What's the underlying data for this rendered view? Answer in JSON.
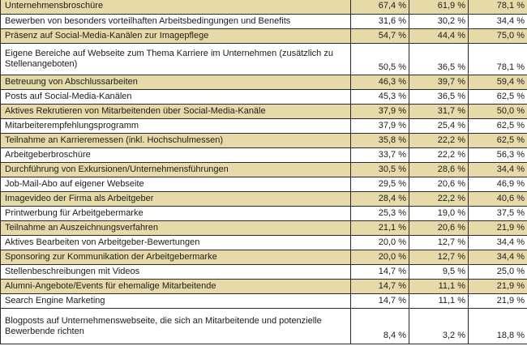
{
  "rows": [
    {
      "label": "Unternehmensbroschüre",
      "v1": "67,4 %",
      "v2": "61,9 %",
      "v3": "78,1 %",
      "shaded": true
    },
    {
      "label": "Bewerben von besonders vorteilhaften Arbeitsbedingungen und Benefits",
      "v1": "31,6 %",
      "v2": "30,2 %",
      "v3": "34,4 %",
      "shaded": false
    },
    {
      "label": "Präsenz auf Social-Media-Kanälen zur Imagepflege",
      "v1": "54,7 %",
      "v2": "44,4 %",
      "v3": "75,0 %",
      "shaded": true
    },
    {
      "label": "Eigene Bereiche auf Webseite zum Thema Karriere im Unternehmen (zusätzlich zu Stellenangeboten)",
      "v1": "50,5 %",
      "v2": "36,5 %",
      "v3": "78,1 %",
      "shaded": false
    },
    {
      "label": "Betreuung von Abschlussarbeiten",
      "v1": "46,3 %",
      "v2": "39,7 %",
      "v3": "59,4 %",
      "shaded": true
    },
    {
      "label": "Posts auf Social-Media-Kanälen",
      "v1": "45,3 %",
      "v2": "36,5 %",
      "v3": "62,5 %",
      "shaded": false
    },
    {
      "label": "Aktives Rekrutieren von Mitarbeitenden über Social-Media-Kanäle",
      "v1": "37,9 %",
      "v2": "31,7 %",
      "v3": "50,0 %",
      "shaded": true
    },
    {
      "label": "Mitarbeiterempfehlungsprogramm",
      "v1": "37,9 %",
      "v2": "25,4 %",
      "v3": "62,5 %",
      "shaded": false
    },
    {
      "label": "Teilnahme an Karrieremessen (inkl. Hochschulmessen)",
      "v1": "35,8 %",
      "v2": "22,2 %",
      "v3": "62,5 %",
      "shaded": true
    },
    {
      "label": "Arbeitgeberbroschüre",
      "v1": "33,7 %",
      "v2": "22,2 %",
      "v3": "56,3 %",
      "shaded": false
    },
    {
      "label": "Durchführung von Exkursionen/Unternehmensführungen",
      "v1": "30,5 %",
      "v2": "28,6 %",
      "v3": "34,4 %",
      "shaded": true
    },
    {
      "label": "Job-Mail-Abo auf eigener Webseite",
      "v1": "29,5 %",
      "v2": "20,6 %",
      "v3": "46,9 %",
      "shaded": false
    },
    {
      "label": "Imagevideo der Firma als Arbeitgeber",
      "v1": "28,4 %",
      "v2": "22,2 %",
      "v3": "40,6 %",
      "shaded": true
    },
    {
      "label": "Printwerbung für Arbeitgebermarke",
      "v1": "25,3 %",
      "v2": "19,0 %",
      "v3": "37,5 %",
      "shaded": false
    },
    {
      "label": "Teilnahme an Auszeichnungsverfahren",
      "v1": "21,1 %",
      "v2": "20,6 %",
      "v3": "21,9 %",
      "shaded": true
    },
    {
      "label": "Aktives Bearbeiten von Arbeitgeber-Bewertungen",
      "v1": "20,0 %",
      "v2": "12,7 %",
      "v3": "34,4 %",
      "shaded": false
    },
    {
      "label": "Sponsoring zur Kommunikation der Arbeitgebermarke",
      "v1": "20,0 %",
      "v2": "12,7 %",
      "v3": "34,4 %",
      "shaded": true
    },
    {
      "label": "Stellenbeschreibungen mit Videos",
      "v1": "14,7 %",
      "v2": "9,5 %",
      "v3": "25,0 %",
      "shaded": false
    },
    {
      "label": "Alumni-Angebote/Events für ehemalige Mitarbeitende",
      "v1": "14,7 %",
      "v2": "11,1 %",
      "v3": "21,9 %",
      "shaded": true
    },
    {
      "label": "Search Engine Marketing",
      "v1": "14,7 %",
      "v2": "11,1 %",
      "v3": "21,9 %",
      "shaded": false
    },
    {
      "label": "Blogposts auf Unternehmenswebseite, die sich an Mitarbeitende und potenzielle Bewerbende richten",
      "v1": "8,4 %",
      "v2": "3,2 %",
      "v3": "18,8 %",
      "shaded": false
    }
  ],
  "colors": {
    "shaded_row": "#e6dba8",
    "border": "#2a2a2a",
    "text": "#1c1c1c"
  }
}
